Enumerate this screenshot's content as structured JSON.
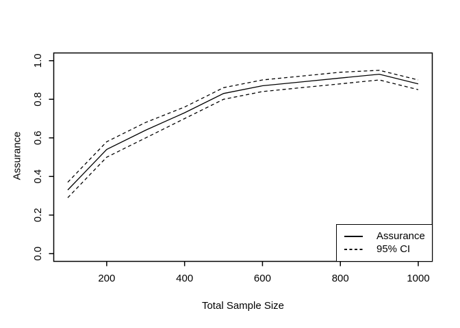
{
  "figure": {
    "background": "#ffffff",
    "foreground": "#000000"
  },
  "chart_data": {
    "type": "line",
    "title": "",
    "xlabel": "Total Sample Size",
    "ylabel": "Assurance",
    "x": [
      100,
      200,
      300,
      400,
      500,
      600,
      700,
      800,
      900,
      1000
    ],
    "series": [
      {
        "name": "Assurance",
        "line": "solid",
        "color": "#000000",
        "values": [
          0.33,
          0.54,
          0.64,
          0.73,
          0.83,
          0.87,
          0.89,
          0.91,
          0.93,
          0.88
        ]
      },
      {
        "name": "95% CI upper",
        "line": "dashed",
        "color": "#000000",
        "values": [
          0.37,
          0.58,
          0.68,
          0.76,
          0.86,
          0.9,
          0.92,
          0.94,
          0.95,
          0.9
        ]
      },
      {
        "name": "95% CI lower",
        "line": "dashed",
        "color": "#000000",
        "values": [
          0.29,
          0.5,
          0.6,
          0.7,
          0.8,
          0.84,
          0.86,
          0.88,
          0.9,
          0.85
        ]
      }
    ],
    "xticks": [
      200,
      400,
      600,
      800,
      1000
    ],
    "yticks": [
      0.0,
      0.2,
      0.4,
      0.6,
      0.8,
      1.0
    ],
    "ytick_labels": [
      "0.0",
      "0.2",
      "0.4",
      "0.6",
      "0.8",
      "1.0"
    ],
    "xlim": [
      64,
      1036
    ],
    "ylim": [
      -0.04,
      1.04
    ],
    "grid": false,
    "legend": {
      "position": "bottom-right",
      "entries": [
        {
          "label": "Assurance",
          "line": "solid"
        },
        {
          "label": "95% CI",
          "line": "dashed"
        }
      ]
    }
  }
}
